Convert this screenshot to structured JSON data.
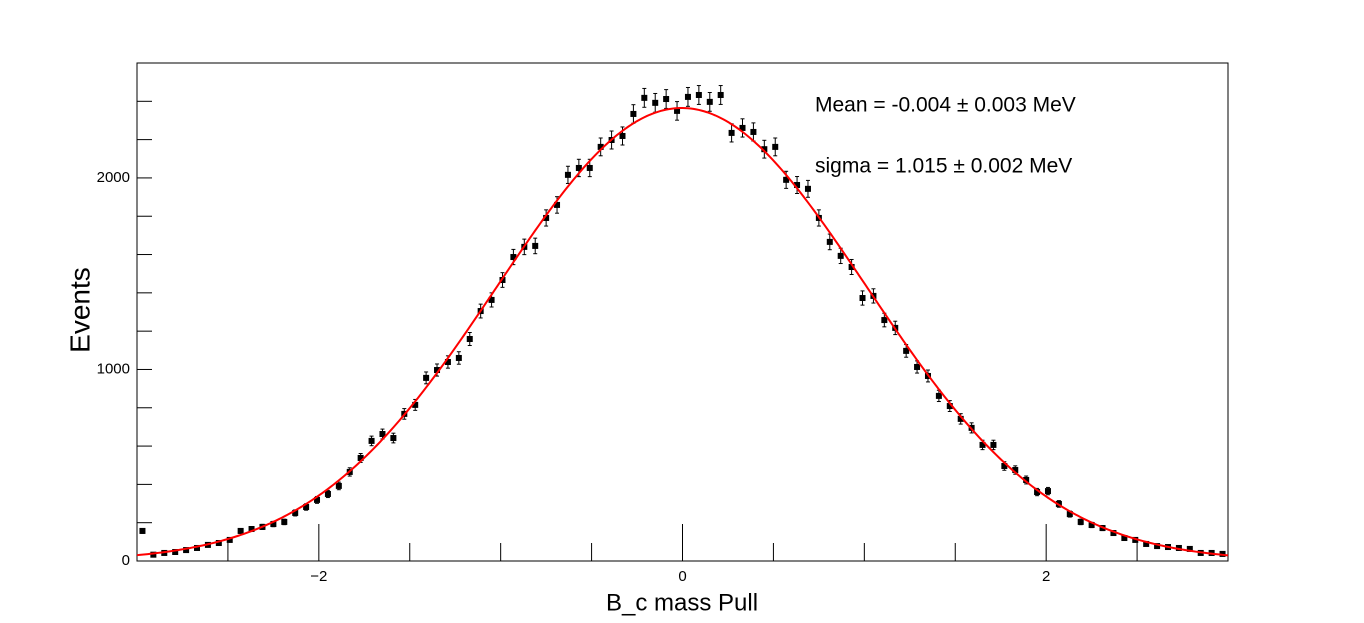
{
  "chart_data": {
    "type": "errorbar",
    "x_label": "B_c mass Pull",
    "y_label": "Events",
    "annotations": [
      "Mean = -0.004 ± 0.003 MeV",
      "sigma = 1.015 ± 0.002 MeV"
    ],
    "x": [
      -2.97,
      -2.91,
      -2.85,
      -2.79,
      -2.73,
      -2.67,
      -2.61,
      -2.55,
      -2.49,
      -2.43,
      -2.37,
      -2.31,
      -2.25,
      -2.19,
      -2.13,
      -2.07,
      -2.01,
      -1.95,
      -1.89,
      -1.83,
      -1.77,
      -1.71,
      -1.65,
      -1.59,
      -1.53,
      -1.47,
      -1.41,
      -1.35,
      -1.29,
      -1.23,
      -1.17,
      -1.11,
      -1.05,
      -0.99,
      -0.93,
      -0.87,
      -0.81,
      -0.75,
      -0.69,
      -0.63,
      -0.57,
      -0.51,
      -0.45,
      -0.39,
      -0.33,
      -0.27,
      -0.21,
      -0.15,
      -0.09,
      -0.03,
      0.03,
      0.09,
      0.15,
      0.21,
      0.27,
      0.33,
      0.39,
      0.45,
      0.51,
      0.57,
      0.63,
      0.69,
      0.75,
      0.81,
      0.87,
      0.93,
      0.99,
      1.05,
      1.11,
      1.17,
      1.23,
      1.29,
      1.35,
      1.41,
      1.47,
      1.53,
      1.59,
      1.65,
      1.71,
      1.77,
      1.83,
      1.89,
      1.95,
      2.01,
      2.07,
      2.13,
      2.19,
      2.25,
      2.31,
      2.37,
      2.43,
      2.49,
      2.55,
      2.61,
      2.67,
      2.73,
      2.79,
      2.85,
      2.91,
      2.97
    ],
    "values": [
      157,
      33,
      42,
      47,
      57,
      68,
      84,
      94,
      110,
      157,
      167,
      178,
      193,
      204,
      251,
      282,
      319,
      350,
      392,
      465,
      538,
      627,
      663,
      642,
      768,
      815,
      956,
      997,
      1039,
      1060,
      1159,
      1305,
      1363,
      1467,
      1587,
      1640,
      1645,
      1791,
      1859,
      2016,
      2052,
      2052,
      2162,
      2198,
      2219,
      2334,
      2418,
      2392,
      2412,
      2350,
      2423,
      2433,
      2397,
      2433,
      2235,
      2261,
      2240,
      2150,
      2162,
      1990,
      1963,
      1943,
      1791,
      1666,
      1593,
      1535,
      1373,
      1384,
      1258,
      1217,
      1097,
      1013,
      966,
      862,
      809,
      742,
      695,
      606,
      606,
      496,
      475,
      423,
      360,
      365,
      298,
      245,
      204,
      188,
      172,
      146,
      120,
      110,
      89,
      78,
      73,
      68,
      63,
      42,
      42,
      37
    ],
    "errors": [
      12.5,
      5.7,
      6.5,
      6.9,
      7.5,
      8.2,
      9.2,
      9.7,
      10.5,
      12.5,
      12.9,
      13.3,
      13.9,
      14.3,
      15.8,
      16.8,
      17.9,
      18.7,
      19.8,
      21.6,
      23.2,
      25,
      25.7,
      25.3,
      27.7,
      28.5,
      30.9,
      31.6,
      32.2,
      32.6,
      34,
      36.1,
      36.9,
      38.3,
      39.8,
      40.5,
      40.6,
      42.3,
      43.1,
      44.9,
      45.3,
      45.3,
      46.5,
      46.9,
      47.1,
      48.3,
      49.2,
      48.9,
      49.1,
      48.5,
      49.2,
      49.3,
      49,
      49.3,
      47.3,
      47.6,
      47.3,
      46.4,
      46.5,
      44.6,
      44.3,
      44.1,
      42.3,
      40.8,
      39.9,
      39.2,
      37.1,
      37.2,
      35.5,
      34.9,
      33.1,
      31.8,
      31.1,
      29.4,
      28.4,
      27.2,
      26.4,
      24.6,
      24.6,
      22.3,
      21.8,
      20.6,
      19,
      19.1,
      17.3,
      15.7,
      14.3,
      13.7,
      13.1,
      12.1,
      11,
      10.5,
      9.4,
      8.8,
      8.5,
      8.2,
      7.9,
      6.5,
      6.5,
      6.1
    ],
    "color": "#000000",
    "fit": {
      "mean": -0.004,
      "sigma": 1.015,
      "amplitude": 2365,
      "color": "#ff0000"
    },
    "xlim": [
      -3,
      3
    ],
    "ylim": [
      0,
      2600
    ],
    "xticks": [
      {
        "value": -2,
        "label": "−2"
      },
      0,
      2
    ],
    "xminorticks": [
      -2.5,
      -1.5,
      -1,
      -0.5,
      0.5,
      1,
      1.5,
      2.5
    ],
    "yticks": [
      0,
      1000,
      2000
    ],
    "yminorticks": [
      200,
      400,
      600,
      800,
      1200,
      1400,
      1600,
      1800,
      2200,
      2400,
      2600
    ]
  }
}
